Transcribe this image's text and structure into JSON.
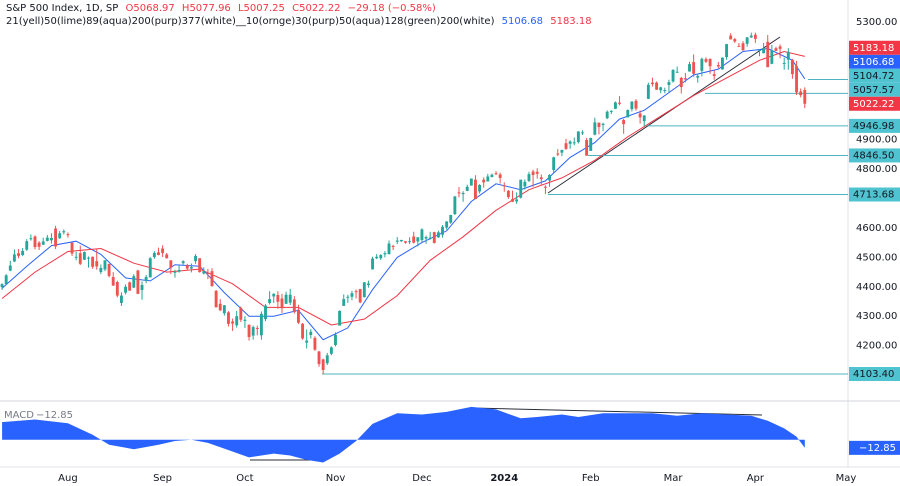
{
  "chart_data": {
    "type": "candlestick",
    "title": "S&P 500 Index, 1D, SP",
    "header_values": [
      "O5068.97",
      "H5077.96",
      "L5007.25",
      "C5022.22",
      "−29.18 (−0.58%)"
    ],
    "indicator_legend": "21(yell)50(lime)89(aqua)200(purp)377(white)__10(ornge)30(purp)50(aqua)128(green)200(white)",
    "up_color": "#26a69a",
    "down_color": "#ef5350",
    "xlim": [
      -0.5,
      205.5
    ],
    "xticks": [
      {
        "value": 16,
        "label": "Aug"
      },
      {
        "value": 39,
        "label": "Sep"
      },
      {
        "value": 59,
        "label": "Oct"
      },
      {
        "value": 81,
        "label": "Nov"
      },
      {
        "value": 102,
        "label": "Dec"
      },
      {
        "value": 122,
        "label": "2024"
      },
      {
        "value": 143,
        "label": "Feb"
      },
      {
        "value": 163,
        "label": "Mar"
      },
      {
        "value": 183,
        "label": "Apr"
      },
      {
        "value": 205,
        "label": "May"
      }
    ],
    "ylim": [
      4015,
      5375
    ],
    "yticks": [
      {
        "value": 5300,
        "label": "5300.00"
      },
      {
        "value": 4900,
        "label": "4900.00"
      },
      {
        "value": 4800,
        "label": "4800.00"
      },
      {
        "value": 4700,
        "label": "4700.00"
      },
      {
        "value": 4600,
        "label": "4600.00"
      },
      {
        "value": 4500,
        "label": "4500.00"
      },
      {
        "value": 4400,
        "label": "4400.00"
      },
      {
        "value": 4300,
        "label": "4300.00"
      },
      {
        "value": 4200,
        "label": "4200.00"
      }
    ],
    "candles": [
      [
        4399,
        4412,
        4389,
        4409
      ],
      [
        4409,
        4443,
        4408,
        4439
      ],
      [
        4455,
        4488,
        4453,
        4472
      ],
      [
        4486,
        4527,
        4484,
        4510
      ],
      [
        4514,
        4528,
        4497,
        4505
      ],
      [
        4508,
        4532,
        4504,
        4522
      ],
      [
        4526,
        4562,
        4522,
        4555
      ],
      [
        4563,
        4578,
        4557,
        4565
      ],
      [
        4571,
        4575,
        4527,
        4535
      ],
      [
        4550,
        4555,
        4525,
        4536
      ],
      [
        4543,
        4567,
        4542,
        4554
      ],
      [
        4556,
        4576,
        4554,
        4567
      ],
      [
        4558,
        4582,
        4547,
        4566
      ],
      [
        4598,
        4607,
        4528,
        4537
      ],
      [
        4565,
        4590,
        4563,
        4582
      ],
      [
        4585,
        4595,
        4578,
        4589
      ],
      [
        4579,
        4585,
        4567,
        4577
      ],
      [
        4550,
        4551,
        4505,
        4513
      ],
      [
        4502,
        4519,
        4490,
        4502
      ],
      [
        4514,
        4540,
        4474,
        4478
      ],
      [
        4492,
        4520,
        4491,
        4518
      ],
      [
        4498,
        4503,
        4465,
        4499
      ],
      [
        4502,
        4503,
        4461,
        4468
      ],
      [
        4487,
        4528,
        4458,
        4469
      ],
      [
        4450,
        4476,
        4443,
        4464
      ],
      [
        4459,
        4490,
        4453,
        4490
      ],
      [
        4478,
        4478,
        4432,
        4437
      ],
      [
        4433,
        4450,
        4403,
        4404
      ],
      [
        4416,
        4421,
        4364,
        4370
      ],
      [
        4345,
        4381,
        4335,
        4370
      ],
      [
        4380,
        4408,
        4374,
        4400
      ],
      [
        4415,
        4418,
        4386,
        4387
      ],
      [
        4397,
        4443,
        4396,
        4436
      ],
      [
        4455,
        4458,
        4375,
        4376
      ],
      [
        4389,
        4418,
        4356,
        4406
      ],
      [
        4420,
        4440,
        4412,
        4433
      ],
      [
        4432,
        4501,
        4432,
        4497
      ],
      [
        4501,
        4521,
        4495,
        4515
      ],
      [
        4517,
        4533,
        4507,
        4508
      ],
      [
        4530,
        4541,
        4501,
        4515
      ],
      [
        4510,
        4515,
        4496,
        4497
      ],
      [
        4490,
        4490,
        4443,
        4465
      ],
      [
        4451,
        4458,
        4431,
        4451
      ],
      [
        4451,
        4473,
        4448,
        4457
      ],
      [
        4480,
        4490,
        4475,
        4487
      ],
      [
        4474,
        4478,
        4456,
        4462
      ],
      [
        4462,
        4479,
        4449,
        4467
      ],
      [
        4487,
        4511,
        4478,
        4505
      ],
      [
        4497,
        4497,
        4448,
        4450
      ],
      [
        4445,
        4466,
        4442,
        4453
      ],
      [
        4447,
        4461,
        4426,
        4444
      ],
      [
        4453,
        4463,
        4401,
        4402
      ],
      [
        4386,
        4389,
        4330,
        4330
      ],
      [
        4342,
        4358,
        4317,
        4320
      ],
      [
        4310,
        4338,
        4302,
        4337
      ],
      [
        4313,
        4317,
        4265,
        4274
      ],
      [
        4282,
        4292,
        4250,
        4275
      ],
      [
        4269,
        4318,
        4261,
        4300
      ],
      [
        4328,
        4333,
        4280,
        4288
      ],
      [
        4284,
        4300,
        4260,
        4288
      ],
      [
        4271,
        4271,
        4217,
        4229
      ],
      [
        4234,
        4268,
        4220,
        4263
      ],
      [
        4260,
        4268,
        4235,
        4258
      ],
      [
        4235,
        4316,
        4220,
        4308
      ],
      [
        4290,
        4341,
        4283,
        4336
      ],
      [
        4345,
        4385,
        4340,
        4358
      ],
      [
        4367,
        4378,
        4345,
        4376
      ],
      [
        4372,
        4385,
        4325,
        4349
      ],
      [
        4360,
        4376,
        4311,
        4327
      ],
      [
        4342,
        4383,
        4342,
        4373
      ],
      [
        4346,
        4393,
        4338,
        4373
      ],
      [
        4357,
        4368,
        4309,
        4314
      ],
      [
        4322,
        4339,
        4273,
        4278
      ],
      [
        4274,
        4277,
        4220,
        4224
      ],
      [
        4210,
        4255,
        4190,
        4217
      ],
      [
        4236,
        4256,
        4224,
        4247
      ],
      [
        4226,
        4232,
        4182,
        4186
      ],
      [
        4180,
        4182,
        4128,
        4137
      ],
      [
        4153,
        4156,
        4103,
        4117
      ],
      [
        4140,
        4175,
        4134,
        4167
      ],
      [
        4172,
        4197,
        4167,
        4194
      ],
      [
        4202,
        4245,
        4197,
        4237
      ],
      [
        4268,
        4320,
        4268,
        4318
      ],
      [
        4335,
        4374,
        4335,
        4358
      ],
      [
        4365,
        4373,
        4345,
        4366
      ],
      [
        4366,
        4386,
        4354,
        4378
      ],
      [
        4385,
        4391,
        4360,
        4383
      ],
      [
        4392,
        4393,
        4344,
        4347
      ],
      [
        4365,
        4416,
        4363,
        4415
      ],
      [
        4406,
        4421,
        4397,
        4411
      ],
      [
        4459,
        4502,
        4459,
        4496
      ],
      [
        4497,
        4511,
        4494,
        4502
      ],
      [
        4497,
        4511,
        4491,
        4508
      ],
      [
        4510,
        4521,
        4500,
        4514
      ],
      [
        4511,
        4557,
        4510,
        4547
      ],
      [
        4539,
        4542,
        4525,
        4538
      ],
      [
        4553,
        4569,
        4545,
        4557
      ],
      [
        4555,
        4560,
        4552,
        4559
      ],
      [
        4555,
        4555,
        4546,
        4550
      ],
      [
        4554,
        4568,
        4545,
        4555
      ],
      [
        4571,
        4587,
        4547,
        4550
      ],
      [
        4554,
        4569,
        4537,
        4568
      ],
      [
        4559,
        4599,
        4551,
        4595
      ],
      [
        4564,
        4574,
        4546,
        4569
      ],
      [
        4566,
        4587,
        4560,
        4567
      ],
      [
        4586,
        4587,
        4547,
        4549
      ],
      [
        4568,
        4591,
        4566,
        4585
      ],
      [
        4577,
        4610,
        4567,
        4604
      ],
      [
        4601,
        4623,
        4594,
        4622
      ],
      [
        4618,
        4645,
        4614,
        4644
      ],
      [
        4647,
        4709,
        4644,
        4707
      ],
      [
        4721,
        4739,
        4704,
        4720
      ],
      [
        4715,
        4725,
        4689,
        4719
      ],
      [
        4726,
        4747,
        4725,
        4740
      ],
      [
        4744,
        4768,
        4744,
        4768
      ],
      [
        4764,
        4779,
        4698,
        4698
      ],
      [
        4724,
        4749,
        4717,
        4746
      ],
      [
        4764,
        4772,
        4737,
        4755
      ],
      [
        4758,
        4784,
        4758,
        4775
      ],
      [
        4773,
        4785,
        4772,
        4781
      ],
      [
        4786,
        4793,
        4780,
        4783
      ],
      [
        4782,
        4788,
        4751,
        4770
      ],
      [
        4745,
        4755,
        4723,
        4743
      ],
      [
        4726,
        4729,
        4699,
        4705
      ],
      [
        4698,
        4727,
        4688,
        4689
      ],
      [
        4690,
        4721,
        4682,
        4697
      ],
      [
        4703,
        4764,
        4700,
        4764
      ],
      [
        4741,
        4765,
        4730,
        4757
      ],
      [
        4760,
        4791,
        4756,
        4783
      ],
      [
        4792,
        4798,
        4740,
        4780
      ],
      [
        4791,
        4803,
        4768,
        4784
      ],
      [
        4772,
        4782,
        4747,
        4766
      ],
      [
        4740,
        4745,
        4715,
        4739
      ],
      [
        4761,
        4783,
        4740,
        4780
      ],
      [
        4797,
        4842,
        4785,
        4840
      ],
      [
        4853,
        4868,
        4844,
        4851
      ],
      [
        4856,
        4866,
        4844,
        4865
      ],
      [
        4888,
        4903,
        4865,
        4869
      ],
      [
        4886,
        4898,
        4869,
        4894
      ],
      [
        4888,
        4907,
        4881,
        4891
      ],
      [
        4892,
        4929,
        4887,
        4928
      ],
      [
        4925,
        4932,
        4916,
        4925
      ],
      [
        4899,
        4906,
        4845,
        4846
      ],
      [
        4862,
        4907,
        4862,
        4906
      ],
      [
        4917,
        4975,
        4915,
        4959
      ],
      [
        4958,
        4958,
        4918,
        4943
      ],
      [
        4950,
        4958,
        4929,
        4954
      ],
      [
        4973,
        5000,
        4970,
        4995
      ],
      [
        4995,
        5000,
        4987,
        4998
      ],
      [
        5005,
        5030,
        5004,
        5027
      ],
      [
        5026,
        5048,
        5017,
        5022
      ],
      [
        4967,
        4971,
        4920,
        4953
      ],
      [
        4976,
        5003,
        4976,
        5001
      ],
      [
        5004,
        5030,
        4996,
        5030
      ],
      [
        5032,
        5038,
        4999,
        5006
      ],
      [
        4989,
        4999,
        4955,
        4976
      ],
      [
        4963,
        4984,
        4946,
        4982
      ],
      [
        5039,
        5094,
        5038,
        5087
      ],
      [
        5094,
        5111,
        5081,
        5089
      ],
      [
        5094,
        5098,
        5069,
        5070
      ],
      [
        5068,
        5080,
        5058,
        5078
      ],
      [
        5067,
        5077,
        5058,
        5069
      ],
      [
        5086,
        5104,
        5062,
        5096
      ],
      [
        5098,
        5140,
        5094,
        5137
      ],
      [
        5131,
        5149,
        5128,
        5131
      ],
      [
        5110,
        5114,
        5057,
        5079
      ],
      [
        5109,
        5127,
        5095,
        5105
      ],
      [
        5132,
        5165,
        5131,
        5157
      ],
      [
        5164,
        5190,
        5114,
        5124
      ],
      [
        5111,
        5125,
        5094,
        5117
      ],
      [
        5134,
        5179,
        5115,
        5175
      ],
      [
        5174,
        5180,
        5161,
        5165
      ],
      [
        5175,
        5176,
        5124,
        5150
      ],
      [
        5123,
        5136,
        5104,
        5117
      ],
      [
        5154,
        5164,
        5143,
        5149
      ],
      [
        5139,
        5180,
        5138,
        5179
      ],
      [
        5181,
        5226,
        5172,
        5225
      ],
      [
        5254,
        5262,
        5241,
        5241
      ],
      [
        5242,
        5246,
        5229,
        5234
      ],
      [
        5219,
        5229,
        5217,
        5218
      ],
      [
        5228,
        5235,
        5203,
        5204
      ],
      [
        5226,
        5249,
        5216,
        5248
      ],
      [
        5248,
        5264,
        5246,
        5254
      ],
      [
        5257,
        5264,
        5229,
        5243
      ],
      [
        5204,
        5208,
        5184,
        5205
      ],
      [
        5194,
        5229,
        5194,
        5211
      ],
      [
        5233,
        5256,
        5146,
        5147
      ],
      [
        5158,
        5222,
        5157,
        5204
      ],
      [
        5211,
        5216,
        5203,
        5202
      ],
      [
        5217,
        5224,
        5177,
        5209
      ],
      [
        5160,
        5179,
        5138,
        5161
      ],
      [
        5172,
        5211,
        5138,
        5199
      ],
      [
        5171,
        5175,
        5107,
        5123
      ],
      [
        5150,
        5168,
        5052,
        5061
      ],
      [
        5064,
        5074,
        5044,
        5051.4
      ],
      [
        5068.97,
        5077.96,
        5007.25,
        5022.22
      ]
    ],
    "last_label": "5022.22",
    "moving_averages": [
      {
        "color": "#2962ff",
        "x": [
          0,
          6,
          12,
          18,
          24,
          30,
          36,
          42,
          48,
          54,
          60,
          66,
          72,
          78,
          84,
          90,
          96,
          102,
          108,
          114,
          120,
          126,
          132,
          138,
          144,
          150,
          156,
          162,
          168,
          174,
          180,
          186,
          192,
          195
        ],
        "values": [
          4395,
          4470,
          4540,
          4555,
          4510,
          4430,
          4420,
          4475,
          4470,
          4380,
          4300,
          4300,
          4320,
          4220,
          4260,
          4390,
          4500,
          4550,
          4590,
          4690,
          4750,
          4730,
          4760,
          4840,
          4890,
          4970,
          5000,
          5060,
          5120,
          5140,
          5200,
          5210,
          5170,
          5106.68
        ],
        "last_label": "5106.68"
      },
      {
        "color": "#f23645",
        "x": [
          0,
          8,
          16,
          24,
          32,
          40,
          48,
          56,
          64,
          72,
          80,
          88,
          96,
          104,
          112,
          120,
          128,
          136,
          144,
          152,
          160,
          168,
          176,
          184,
          190,
          195
        ],
        "values": [
          4360,
          4450,
          4520,
          4530,
          4480,
          4450,
          4460,
          4410,
          4330,
          4330,
          4270,
          4290,
          4370,
          4490,
          4570,
          4660,
          4730,
          4770,
          4830,
          4910,
          4980,
          5050,
          5110,
          5170,
          5200,
          5183.18
        ],
        "last_label": "5183.18"
      }
    ],
    "levels": [
      {
        "value": 5104.72,
        "label": "5104.72"
      },
      {
        "value": 5057.57,
        "label": "5057.57"
      },
      {
        "value": 4946.98,
        "label": "4946.98"
      },
      {
        "value": 4846.5,
        "label": "4846.50"
      },
      {
        "value": 4713.68,
        "label": "4713.68"
      },
      {
        "value": 4103.4,
        "label": "4103.40"
      }
    ],
    "macd": {
      "title": "MACD",
      "color": "#2962ff",
      "ylim": [
        -40,
        55
      ],
      "x": [
        0,
        8,
        16,
        22,
        26,
        32,
        38,
        42,
        46,
        50,
        54,
        60,
        66,
        70,
        74,
        78,
        82,
        86,
        90,
        96,
        102,
        108,
        114,
        120,
        126,
        130,
        136,
        140,
        146,
        152,
        158,
        164,
        170,
        176,
        182,
        186,
        190,
        193,
        195
      ],
      "values": [
        28,
        32,
        26,
        8,
        -8,
        -15,
        -8,
        -2,
        0,
        -5,
        -14,
        -28,
        -22,
        -25,
        -32,
        -36,
        -22,
        -2,
        25,
        42,
        40,
        44,
        52,
        48,
        34,
        36,
        40,
        36,
        42,
        42,
        42,
        38,
        42,
        40,
        38,
        30,
        18,
        5,
        -12.85
      ],
      "last_label": "−12.85"
    }
  }
}
